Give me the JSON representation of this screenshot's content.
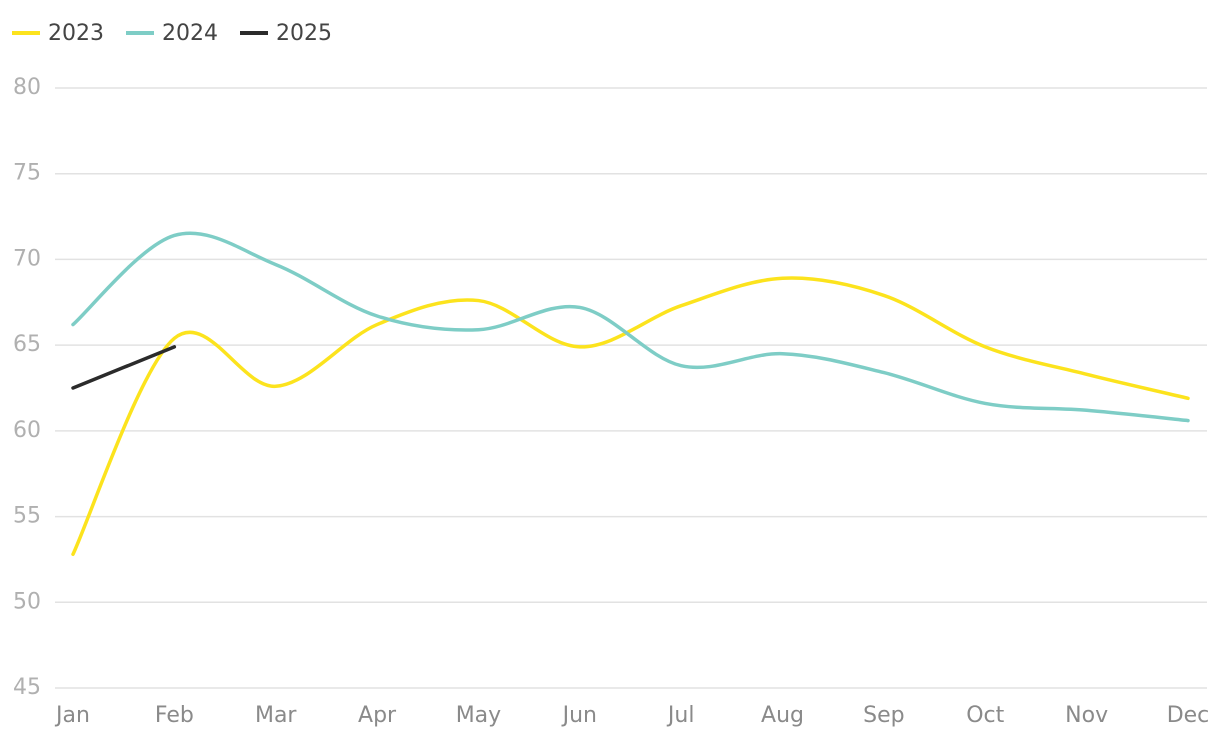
{
  "chart_data": {
    "type": "line",
    "categories": [
      "Jan",
      "Feb",
      "Mar",
      "Apr",
      "May",
      "Jun",
      "Jul",
      "Aug",
      "Sep",
      "Oct",
      "Nov",
      "Dec"
    ],
    "series": [
      {
        "name": "2023",
        "color": "#fce31d",
        "values": [
          52.8,
          65.4,
          62.6,
          66.2,
          67.6,
          64.9,
          67.3,
          68.9,
          67.9,
          64.9,
          63.3,
          61.9
        ]
      },
      {
        "name": "2024",
        "color": "#7ecdc6",
        "values": [
          66.2,
          71.4,
          69.7,
          66.7,
          65.9,
          67.2,
          63.8,
          64.5,
          63.4,
          61.6,
          61.2,
          60.6
        ]
      },
      {
        "name": "2025",
        "color": "#2b2b2b",
        "values": [
          62.5,
          64.9,
          null,
          null,
          null,
          null,
          null,
          null,
          null,
          null,
          null,
          null
        ]
      }
    ],
    "ylim": [
      45,
      80
    ],
    "yticks": [
      45,
      50,
      55,
      60,
      65,
      70,
      75,
      80
    ],
    "grid": true,
    "smooth": true,
    "legend": "top-left"
  }
}
